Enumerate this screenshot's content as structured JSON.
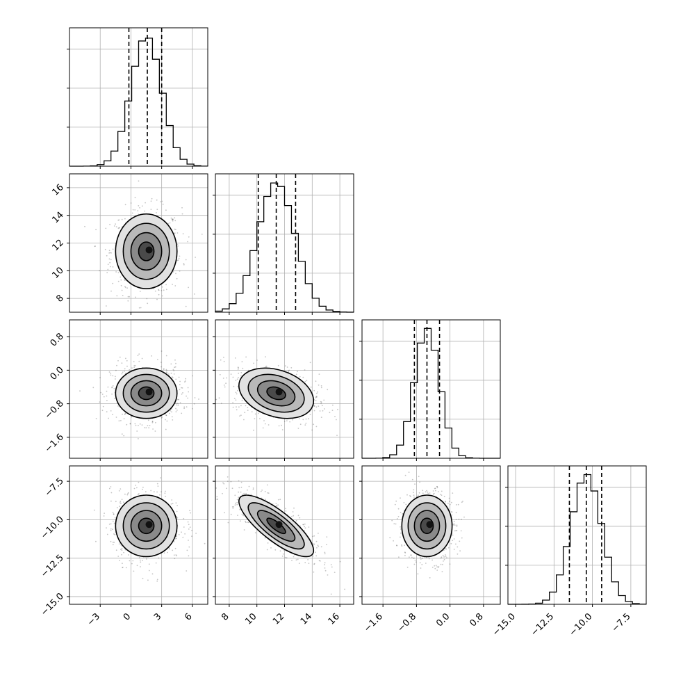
{
  "chart_data": {
    "type": "corner-plot",
    "parameters": [
      {
        "index": 0,
        "range": [
          -6,
          7.5
        ],
        "ticks": [
          "−3",
          "0",
          "3",
          "6"
        ],
        "tick_values": [
          -3,
          0,
          3,
          6
        ],
        "quantiles": [
          -0.2,
          1.6,
          3.0
        ],
        "mean": 1.5,
        "sd": 1.5
      },
      {
        "index": 1,
        "range": [
          7,
          17
        ],
        "ticks": [
          "8",
          "10",
          "12",
          "14",
          "16"
        ],
        "tick_values": [
          8,
          10,
          12,
          14,
          16
        ],
        "quantiles": [
          10.1,
          11.4,
          12.8
        ],
        "mean": 11.4,
        "sd": 1.35
      },
      {
        "index": 2,
        "range": [
          -2.1,
          1.2
        ],
        "ticks": [
          "−1.6",
          "−0.8",
          "0.0",
          "0.8"
        ],
        "tick_values": [
          -1.6,
          -0.8,
          0.0,
          0.8
        ],
        "quantiles": [
          -0.85,
          -0.55,
          -0.25
        ],
        "mean": -0.55,
        "sd": 0.3
      },
      {
        "index": 3,
        "range": [
          -15.5,
          -6.5
        ],
        "ticks": [
          "−15.0",
          "−12.5",
          "−10.0",
          "−7.5"
        ],
        "tick_values": [
          -15.0,
          -12.5,
          -10.0,
          -7.5
        ],
        "quantiles": [
          -11.5,
          -10.4,
          -9.4
        ],
        "mean": -10.4,
        "sd": 1.0
      }
    ],
    "correlations": {
      "0-1": 0.0,
      "0-2": 0.0,
      "0-3": 0.0,
      "1-2": -0.3,
      "1-3": -0.8,
      "2-3": 0.0
    },
    "histogram_bins": 20,
    "contour_levels": [
      0.5,
      1.0,
      1.5,
      2.0
    ],
    "grid": true,
    "colors": {
      "line": "#000000",
      "grid": "#b0b0b0",
      "points": "#555555"
    }
  }
}
